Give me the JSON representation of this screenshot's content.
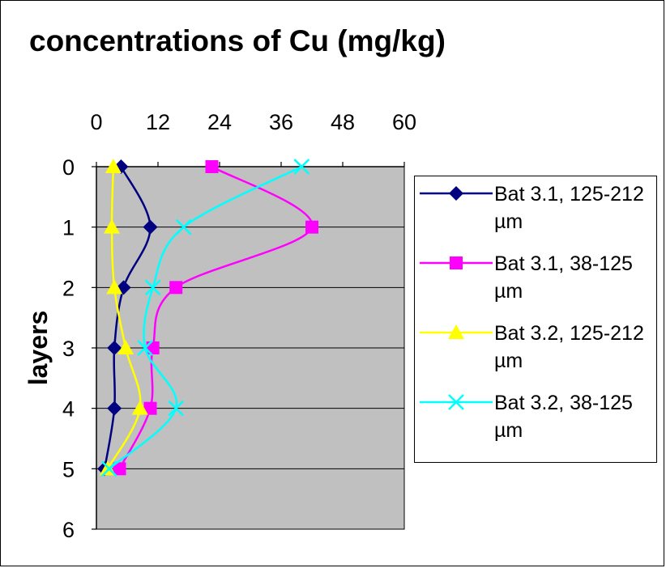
{
  "chart_data": {
    "type": "line",
    "title": "concentrations of Cu (mg/kg)",
    "xlabel": "",
    "ylabel": "layers",
    "x_axis_position": "top",
    "y_axis_reversed": true,
    "xlim": [
      0,
      60
    ],
    "ylim": [
      0,
      6
    ],
    "xticks": [
      "0",
      "12",
      "24",
      "36",
      "48",
      "60"
    ],
    "yticks": [
      "0",
      "1",
      "2",
      "3",
      "4",
      "5",
      "6"
    ],
    "grid": "horizontal",
    "plot_background": "#c0c0c0",
    "legend_position": "right",
    "series": [
      {
        "name": "Bat 3.1, 125-212 µm",
        "color": "#000080",
        "marker": "diamond",
        "points": [
          {
            "x": 4.8,
            "y": 0
          },
          {
            "x": 10.5,
            "y": 1
          },
          {
            "x": 5.3,
            "y": 2
          },
          {
            "x": 3.5,
            "y": 3
          },
          {
            "x": 3.5,
            "y": 4
          },
          {
            "x": 1.6,
            "y": 5
          }
        ]
      },
      {
        "name": "Bat 3.1, 38-125 µm",
        "color": "#ff00ff",
        "marker": "square",
        "points": [
          {
            "x": 22.5,
            "y": 0
          },
          {
            "x": 42,
            "y": 1
          },
          {
            "x": 15.5,
            "y": 2
          },
          {
            "x": 11,
            "y": 3
          },
          {
            "x": 10.5,
            "y": 4
          },
          {
            "x": 4.5,
            "y": 5
          }
        ]
      },
      {
        "name": "Bat 3.2, 125-212 µm",
        "color": "#ffff00",
        "marker": "triangle",
        "points": [
          {
            "x": 3.3,
            "y": 0
          },
          {
            "x": 3,
            "y": 1
          },
          {
            "x": 3.5,
            "y": 2
          },
          {
            "x": 5.7,
            "y": 3
          },
          {
            "x": 8.5,
            "y": 4
          },
          {
            "x": 2.2,
            "y": 5
          }
        ]
      },
      {
        "name": "Bat 3.2, 38-125 µm",
        "color": "#00ffff",
        "marker": "x",
        "points": [
          {
            "x": 40,
            "y": 0
          },
          {
            "x": 17,
            "y": 1
          },
          {
            "x": 11,
            "y": 2
          },
          {
            "x": 9.5,
            "y": 3
          },
          {
            "x": 15.5,
            "y": 4
          },
          {
            "x": 2.5,
            "y": 5
          }
        ]
      }
    ]
  }
}
